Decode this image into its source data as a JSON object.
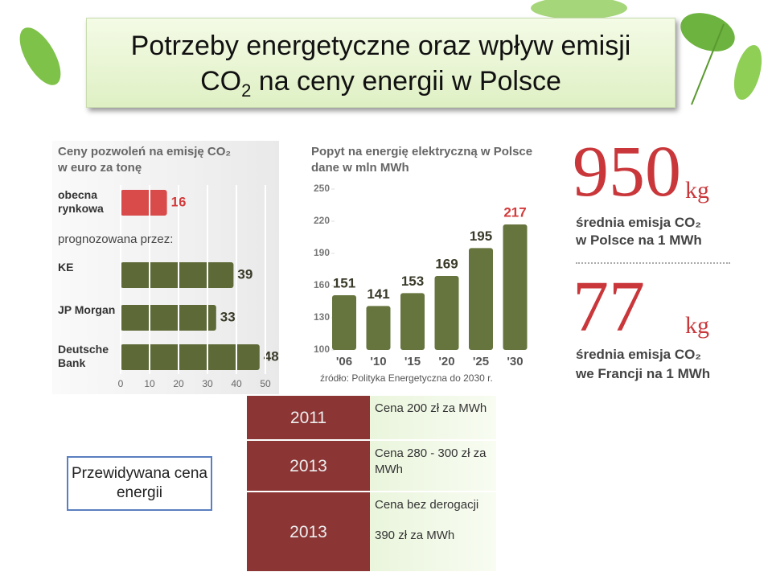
{
  "slide_title": {
    "line1": "Potrzeby energetyczne oraz wpływ emisji",
    "co": "CO",
    "sub": "2",
    "rest": "na ceny energii w Polsce"
  },
  "chart_data": [
    {
      "type": "hbar",
      "title": "Ceny pozwoleń na emisję CO₂",
      "subtitle": "w euro za tonę",
      "group_label": "prognozowana przez:",
      "categories": [
        "obecna rynkowa",
        "KE",
        "JP Morgan",
        "Deutsche Bank"
      ],
      "values": [
        16,
        39,
        33,
        48
      ],
      "colors": [
        "#d94a4a",
        "#5d6a37",
        "#5d6a37",
        "#5d6a37"
      ],
      "label_colors": [
        "#d33b3b",
        "#3a3a2a",
        "#3a3a2a",
        "#3a3a2a"
      ],
      "xlim": [
        0,
        50
      ],
      "xticks": [
        0,
        10,
        20,
        30,
        40,
        50
      ],
      "grid": true
    },
    {
      "type": "bar",
      "title": "Popyt na energię elektryczną w Polsce",
      "subtitle": "dane w mln MWh",
      "categories": [
        "'06",
        "'10",
        "'15",
        "'20",
        "'25",
        "'30"
      ],
      "values": [
        151,
        141,
        153,
        169,
        195,
        217
      ],
      "color": "#66743d",
      "label_colors": [
        "#3a3a2a",
        "#3a3a2a",
        "#3a3a2a",
        "#3a3a2a",
        "#3a3a2a",
        "#d33b3b"
      ],
      "ylim": [
        100,
        250
      ],
      "yticks": [
        100,
        130,
        160,
        190,
        220,
        250
      ],
      "source": "źródło: Polityka Energetyczna do 2030 r."
    }
  ],
  "emissions": [
    {
      "value": 950,
      "unit": "kg",
      "line1": "średnia emisja CO₂",
      "line2": "w Polsce na 1 MWh"
    },
    {
      "value": 77,
      "unit": "kg",
      "line1": "średnia emisja CO₂",
      "line2": "we Francji na 1 MWh"
    }
  ],
  "side_label": "Przewidywana cena energii",
  "table": {
    "rows": [
      {
        "year": "2011",
        "price": [
          "Cena 200 zł za MWh"
        ]
      },
      {
        "year": "2013",
        "price": [
          "Cena 280 - 300 zł  za MWh"
        ]
      },
      {
        "year": "2013",
        "price": [
          "Cena bez derogacji",
          "390 zł za MWh"
        ]
      }
    ]
  }
}
